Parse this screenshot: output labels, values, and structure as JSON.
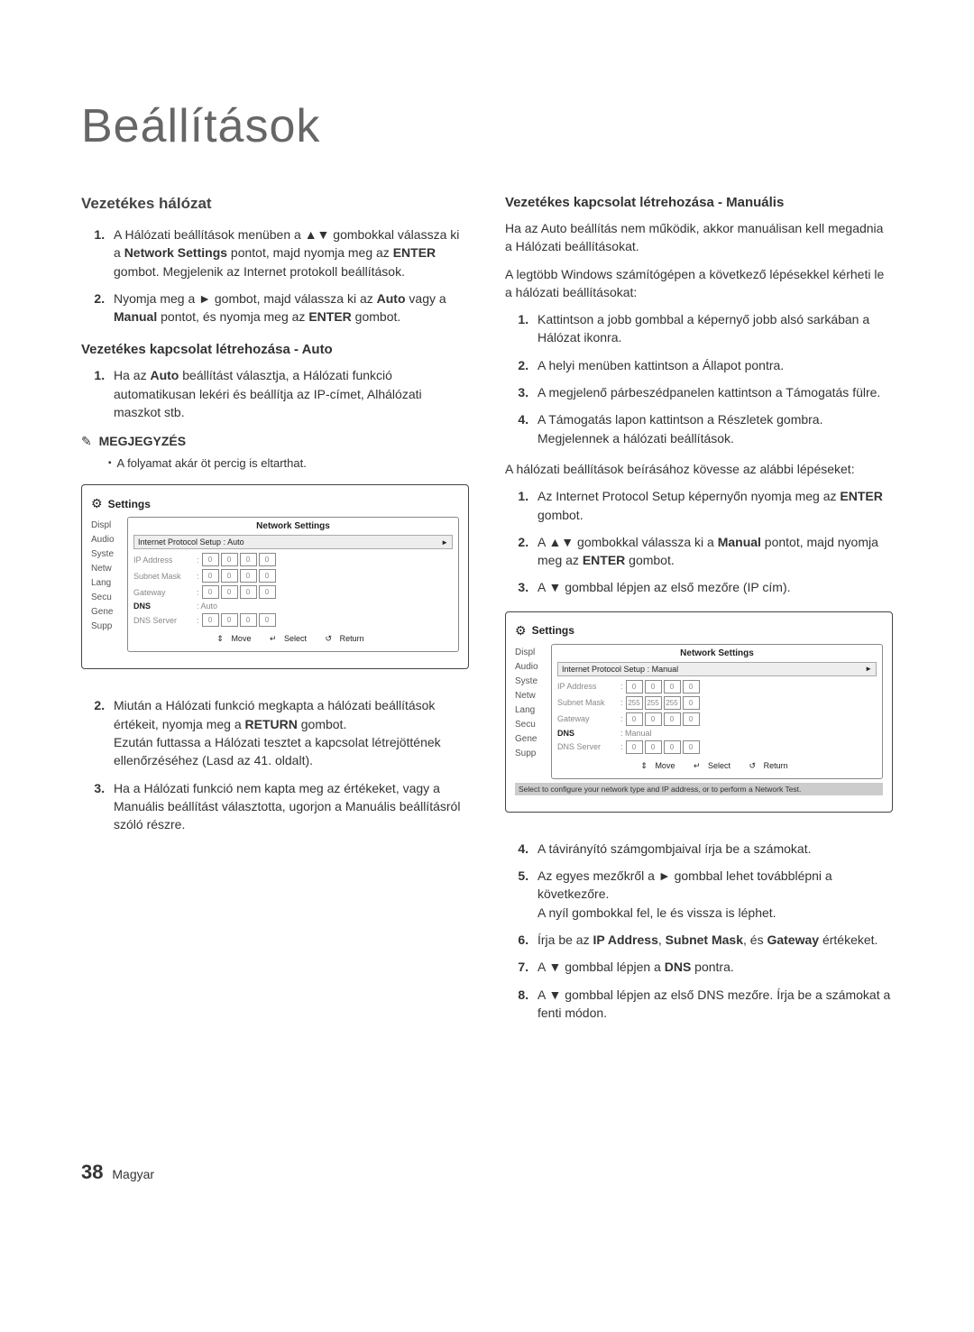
{
  "page_title": "Beállítások",
  "page_number": "38",
  "page_lang": "Magyar",
  "left": {
    "section_title": "Vezetékes hálózat",
    "steps_a": [
      "A Hálózati beállítások menüben a ▲▼ gombokkal válassza ki a <b>Network Settings</b> pontot, majd nyomja meg az <b>ENTER</b> gombot. Megjelenik az Internet protokoll beállítások.",
      "Nyomja meg a ► gombot, majd válassza ki az <b>Auto</b> vagy a <b>Manual</b> pontot, és nyomja meg az <b>ENTER</b> gombot."
    ],
    "sub_auto": "Vezetékes kapcsolat létrehozása - Auto",
    "steps_b": [
      "Ha az <b>Auto</b> beállítást választja, a Hálózati funkció automatikusan lekéri és beállítja az IP-címet, Alhálózati maszkot stb."
    ],
    "note_label": "MEGJEGYZÉS",
    "note_text": "A folyamat akár öt percig is eltarthat.",
    "steps_c": [
      "Miután a Hálózati funkció megkapta a hálózati beállítások értékeit, nyomja meg a <b>RETURN</b> gombot.<br>Ezután futtassa a Hálózati tesztet a kapcsolat létrejöttének ellenőrzéséhez (Lasd az 41. oldalt).",
      "Ha a Hálózati funkció nem kapta meg az értékeket, vagy a Manuális beállítást választotta, ugorjon a Manuális beállításról szóló részre."
    ]
  },
  "right": {
    "sub_manual": "Vezetékes kapcsolat létrehozása - Manuális",
    "intro1": "Ha az Auto beállítás nem működik, akkor manuálisan kell megadnia a Hálózati beállításokat.",
    "intro2": "A legtöbb Windows számítógépen a következő lépésekkel kérheti le a hálózati beállításokat:",
    "steps_d": [
      "Kattintson a jobb gombbal a képernyő jobb alsó sarkában a Hálózat ikonra.",
      "A helyi menüben kattintson a Állapot pontra.",
      "A megjelenő párbeszédpanelen kattintson a Támogatás fülre.",
      "A Támogatás lapon kattintson a Részletek gombra.<br>Megjelennek a hálózati beállítások."
    ],
    "mid": "A hálózati beállítások beírásához kövesse az alábbi lépéseket:",
    "steps_e": [
      "Az Internet Protocol Setup képernyőn nyomja meg az <b>ENTER</b> gombot.",
      "A ▲▼ gombokkal válassza ki a <b>Manual</b> pontot, majd nyomja meg az <b>ENTER</b> gombot.",
      "A ▼ gombbal lépjen az első mezőre (IP cím)."
    ],
    "steps_f": [
      "A távirányító számgombjaival írja be a számokat.",
      "Az egyes mezőkről a ► gombbal lehet továbblépni a következőre.<br>A nyíl gombokkal fel, le és vissza is léphet.",
      "Írja be az <b>IP Address</b>, <b>Subnet Mask</b>, és <b>Gateway</b> értékeket.",
      "A ▼ gombbal lépjen a <b>DNS</b> pontra.",
      "A ▼ gombbal lépjen az első DNS mezőre. Írja be a számokat a fenti módon."
    ]
  },
  "panel": {
    "settings": "Settings",
    "net_settings": "Network Settings",
    "ip_setup": "Internet Protocol Setup",
    "auto": "Auto",
    "manual": "Manual",
    "side": [
      "Displ",
      "Audio",
      "Syste",
      "Netw",
      "Lang",
      "Secu",
      "Gene",
      "Supp"
    ],
    "ip_address": "IP Address",
    "subnet": "Subnet Mask",
    "gateway": "Gateway",
    "dns": "DNS",
    "dns_server": "DNS Server",
    "move": "Move",
    "select": "Select",
    "return": "Return",
    "hint_text": "Select to configure your network type and IP address, or to perform a Network Test.",
    "v0": "0",
    "v255": "255"
  }
}
